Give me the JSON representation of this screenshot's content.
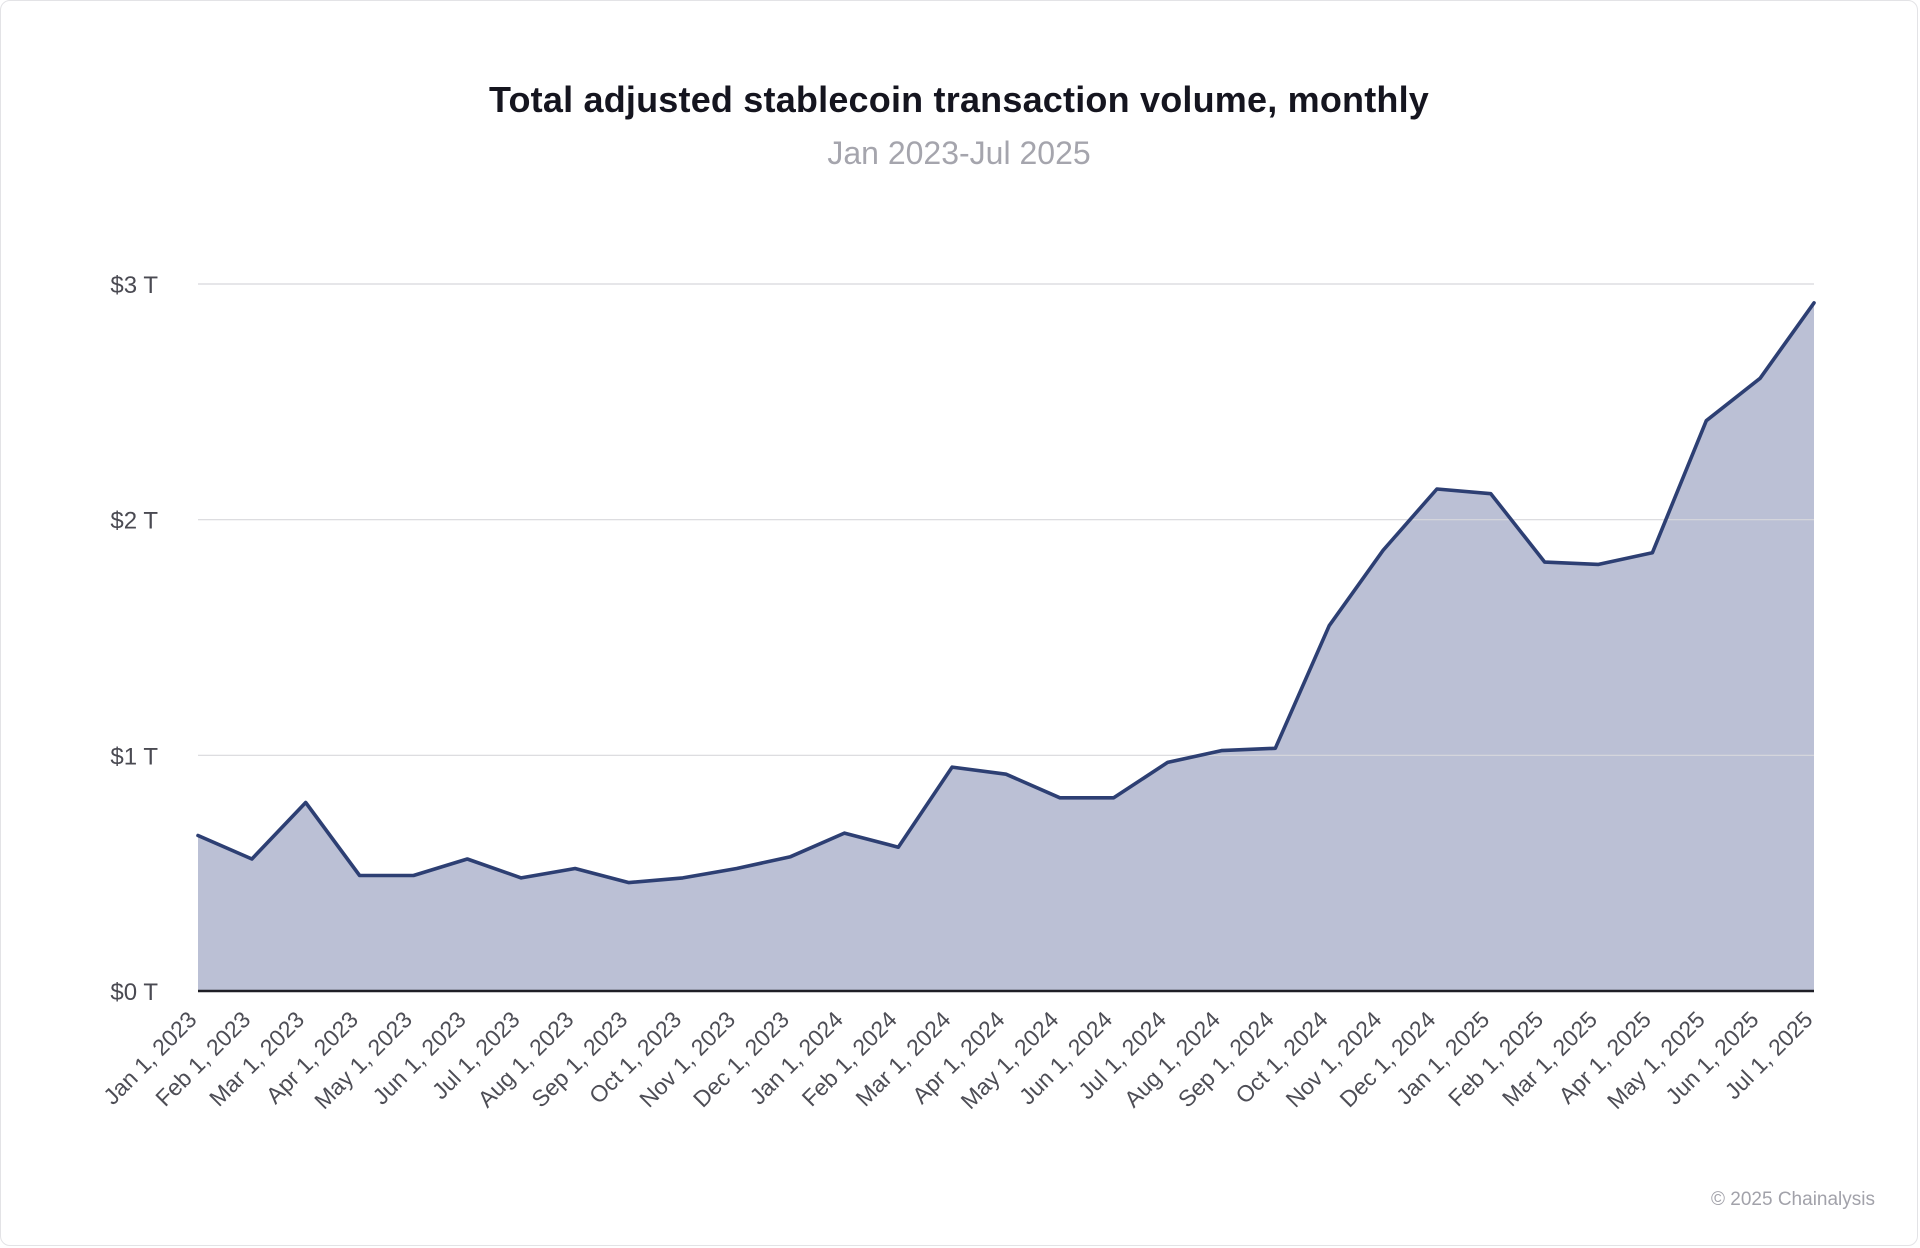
{
  "page": {
    "title": "Total adjusted stablecoin transaction volume, monthly",
    "subtitle": "Jan 2023-Jul 2025",
    "footer": "© 2025 Chainalysis"
  },
  "chart_data": {
    "type": "area",
    "title": "Total adjusted stablecoin transaction volume, monthly",
    "subtitle": "Jan 2023-Jul 2025",
    "unit": "trillions USD",
    "x": [
      "Jan 1, 2023",
      "Feb 1, 2023",
      "Mar 1, 2023",
      "Apr 1, 2023",
      "May 1, 2023",
      "Jun 1, 2023",
      "Jul 1, 2023",
      "Aug 1, 2023",
      "Sep 1, 2023",
      "Oct 1, 2023",
      "Nov 1, 2023",
      "Dec 1, 2023",
      "Jan 1, 2024",
      "Feb 1, 2024",
      "Mar 1, 2024",
      "Apr 1, 2024",
      "May 1, 2024",
      "Jun 1, 2024",
      "Jul 1, 2024",
      "Aug 1, 2024",
      "Sep 1, 2024",
      "Oct 1, 2024",
      "Nov 1, 2024",
      "Dec 1, 2024",
      "Jan 1, 2025",
      "Feb 1, 2025",
      "Mar 1, 2025",
      "Apr 1, 2025",
      "May 1, 2025",
      "Jun 1, 2025",
      "Jul 1, 2025"
    ],
    "values": [
      0.66,
      0.56,
      0.8,
      0.49,
      0.49,
      0.56,
      0.48,
      0.52,
      0.46,
      0.48,
      0.52,
      0.57,
      0.67,
      0.61,
      0.95,
      0.92,
      0.82,
      0.82,
      0.97,
      1.02,
      1.03,
      1.55,
      1.87,
      2.13,
      2.11,
      1.82,
      1.81,
      1.86,
      2.42,
      2.6,
      2.92
    ],
    "ylim": [
      0,
      3
    ],
    "yticks": [
      0,
      1,
      2,
      3
    ],
    "ytick_labels": [
      "$0 T",
      "$1 T",
      "$2 T",
      "$3 T"
    ],
    "grid": true,
    "legend": "none",
    "colors": {
      "line": "#2d3f73",
      "fill": "#b7bdd3",
      "grid": "#d8d8dc",
      "axis": "#1f1f26"
    }
  }
}
